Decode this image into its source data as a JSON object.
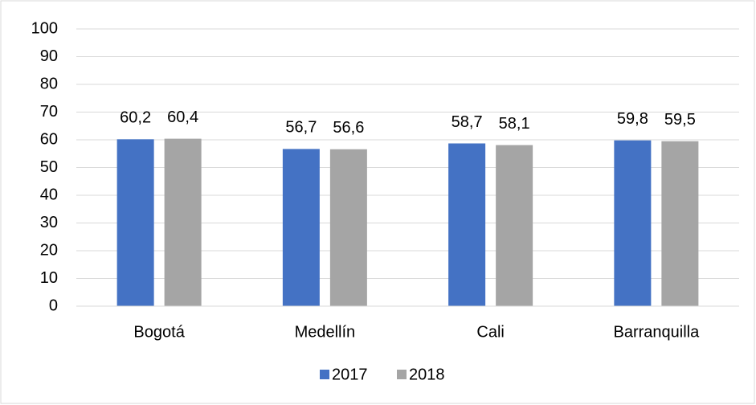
{
  "chart_data": {
    "type": "bar",
    "categories": [
      "Bogotá",
      "Medellín",
      "Cali",
      "Barranquilla"
    ],
    "series": [
      {
        "name": "2017",
        "color": "#4472c4",
        "values": [
          60.2,
          56.7,
          58.7,
          59.8
        ],
        "value_labels": [
          "60,2",
          "56,7",
          "58,7",
          "59,8"
        ]
      },
      {
        "name": "2018",
        "color": "#a5a5a5",
        "values": [
          60.4,
          56.6,
          58.1,
          59.5
        ],
        "value_labels": [
          "60,4",
          "56,6",
          "58,1",
          "59,5"
        ]
      }
    ],
    "ylim": [
      0,
      100
    ],
    "yticks": [
      0,
      10,
      20,
      30,
      40,
      50,
      60,
      70,
      80,
      90,
      100
    ],
    "grid": true,
    "legend": "bottom"
  }
}
